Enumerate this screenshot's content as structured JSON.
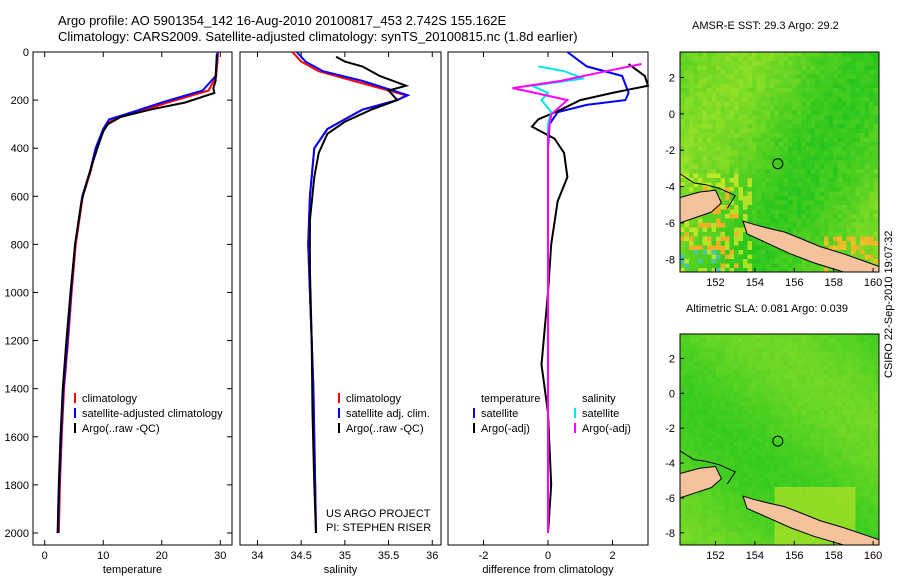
{
  "header": {
    "line1": "Argo profile: AO 5901354_142 16-Aug-2010 20100817_453 2.742S 155.162E",
    "line2": "Climatology: CARS2009. Satellite-adjusted climatology: synTS_20100815.nc (1.8d earlier)"
  },
  "footer_stamp": "CSIRO 22-Sep-2010 19:07:32",
  "colors": {
    "climatology": "#ff0000",
    "satellite": "#0000ff",
    "argo": "#000000",
    "sat_salinity": "#00e5ee",
    "argo_adj_salinity": "#ff00ff"
  },
  "chart_data": [
    {
      "type": "line",
      "xlabel": "temperature",
      "ylabel": "",
      "xlim": [
        -2,
        32
      ],
      "ylim": [
        2050,
        0
      ],
      "x_ticks": [
        0,
        10,
        20,
        30
      ],
      "y_ticks": [
        0,
        200,
        400,
        600,
        800,
        1000,
        1200,
        1400,
        1600,
        1800,
        2000
      ],
      "legend": {
        "position": "lower-right",
        "entries": [
          "climatology",
          "satellite-adjusted climatology",
          "Argo(..raw -QC)"
        ]
      },
      "series": [
        {
          "name": "climatology",
          "color": "#ff0000",
          "x": [
            29.6,
            29.5,
            29.3,
            28.0,
            21.0,
            16.0,
            11.5,
            10.2,
            8.8,
            7.8,
            6.5,
            5.3,
            4.6,
            4.0,
            3.3,
            2.9,
            2.6,
            2.4
          ],
          "y": [
            0,
            40,
            100,
            160,
            210,
            250,
            280,
            320,
            400,
            500,
            600,
            800,
            1000,
            1200,
            1400,
            1600,
            1800,
            2000
          ]
        },
        {
          "name": "satellite-adjusted climatology",
          "color": "#0000ff",
          "x": [
            29.5,
            29.4,
            29.2,
            27.0,
            20.0,
            15.0,
            11.0,
            10.0,
            8.7,
            7.7,
            6.4,
            5.2,
            4.5,
            3.9,
            3.2,
            2.8,
            2.5,
            2.3
          ],
          "y": [
            0,
            40,
            100,
            160,
            210,
            250,
            280,
            320,
            400,
            500,
            600,
            800,
            1000,
            1200,
            1400,
            1600,
            1800,
            2000
          ]
        },
        {
          "name": "Argo(..raw -QC)",
          "color": "#000000",
          "x": [
            29.4,
            29.3,
            29.2,
            28.8,
            29.0,
            24.0,
            18.0,
            13.0,
            10.8,
            10.0,
            9.0,
            8.2,
            7.2,
            6.3,
            5.2,
            4.4,
            3.7,
            3.1,
            2.7,
            2.4,
            2.2
          ],
          "y": [
            10,
            60,
            120,
            150,
            170,
            210,
            240,
            270,
            300,
            330,
            400,
            460,
            540,
            620,
            800,
            1000,
            1200,
            1400,
            1600,
            1800,
            2000
          ]
        }
      ]
    },
    {
      "type": "line",
      "xlabel": "salinity",
      "ylabel": "",
      "xlim": [
        33.8,
        36.1
      ],
      "ylim": [
        2050,
        0
      ],
      "x_ticks": [
        34,
        34.5,
        35,
        35.5,
        36
      ],
      "y_ticks": [],
      "legend": {
        "position": "lower-right",
        "entries": [
          "climatology",
          "satellite adj. clim.",
          "Argo(..raw -QC)"
        ]
      },
      "annotations": [
        "US ARGO PROJECT",
        "PI: STEPHEN RISER"
      ],
      "series": [
        {
          "name": "climatology",
          "color": "#ff0000",
          "x": [
            34.4,
            34.5,
            34.7,
            35.1,
            35.5,
            35.7,
            35.6,
            35.2,
            35.0,
            34.8,
            34.65,
            34.6,
            34.58,
            34.6,
            34.62,
            34.64,
            34.66,
            34.67
          ],
          "y": [
            0,
            40,
            80,
            120,
            160,
            180,
            200,
            240,
            280,
            320,
            400,
            600,
            800,
            1000,
            1200,
            1400,
            1800,
            2000
          ]
        },
        {
          "name": "satellite adj. clim.",
          "color": "#0000ff",
          "x": [
            34.45,
            34.55,
            34.75,
            35.2,
            35.55,
            35.72,
            35.6,
            35.2,
            35.0,
            34.8,
            34.65,
            34.6,
            34.58,
            34.6,
            34.62,
            34.64,
            34.66,
            34.67
          ],
          "y": [
            0,
            40,
            80,
            120,
            160,
            180,
            200,
            240,
            280,
            320,
            400,
            600,
            800,
            1000,
            1200,
            1400,
            1800,
            2000
          ]
        },
        {
          "name": "Argo(..raw -QC)",
          "color": "#000000",
          "x": [
            34.9,
            35.0,
            35.2,
            35.4,
            35.7,
            35.5,
            35.6,
            35.3,
            35.0,
            34.8,
            34.7,
            34.65,
            34.6,
            34.6,
            34.62,
            34.63,
            34.65,
            34.67
          ],
          "y": [
            20,
            40,
            60,
            100,
            140,
            160,
            200,
            240,
            290,
            340,
            420,
            520,
            700,
            900,
            1200,
            1500,
            1800,
            2000
          ]
        }
      ]
    },
    {
      "type": "line",
      "xlabel": "difference from climatology",
      "ylabel": "",
      "xlim": [
        -3.1,
        3.1
      ],
      "ylim": [
        2050,
        0
      ],
      "x_ticks": [
        -2,
        0,
        2
      ],
      "y_ticks": [],
      "legend": {
        "position": "lower-center",
        "columns": [
          [
            "temperature",
            "satellite",
            "Argo(-adj)"
          ],
          [
            "salinity",
            "satellite",
            "Argo(-adj)"
          ]
        ]
      },
      "series": [
        {
          "name": "temperature satellite",
          "color": "#0000ff",
          "x": [
            0.6,
            1.2,
            2.3,
            2.5,
            2.4,
            1.2,
            0.3,
            0.05,
            0.0,
            0.0,
            0.0,
            0.0
          ],
          "y": [
            0,
            60,
            100,
            170,
            200,
            220,
            250,
            300,
            400,
            800,
            1400,
            2000
          ]
        },
        {
          "name": "temperature Argo(-adj)",
          "color": "#000000",
          "x": [
            2.5,
            3.0,
            3.1,
            2.0,
            1.0,
            0.4,
            -0.3,
            -0.5,
            0.2,
            0.5,
            0.6,
            0.3,
            0.1,
            0.0,
            -0.2,
            0.0,
            0.1,
            0.0
          ],
          "y": [
            50,
            100,
            140,
            170,
            200,
            240,
            280,
            310,
            360,
            420,
            520,
            620,
            800,
            1000,
            1300,
            1500,
            1800,
            2000
          ]
        },
        {
          "name": "salinity satellite",
          "color": "#00e5ee",
          "x": [
            -0.3,
            0.5,
            1.1,
            -0.5,
            0.0,
            -0.2,
            0.1,
            0.0,
            0.0,
            0.0,
            0.0
          ],
          "y": [
            60,
            80,
            110,
            140,
            170,
            200,
            250,
            300,
            600,
            1200,
            2000
          ]
        },
        {
          "name": "salinity Argo(-adj)",
          "color": "#ff00ff",
          "x": [
            2.9,
            1.8,
            0.4,
            -1.1,
            -0.4,
            0.6,
            0.1,
            0.0,
            0.0,
            0.0
          ],
          "y": [
            50,
            80,
            120,
            150,
            170,
            200,
            260,
            350,
            800,
            2000
          ]
        }
      ]
    },
    {
      "type": "heatmap",
      "title": "AMSR-E SST: 29.3 Argo: 29.2",
      "x_ticks": [
        152,
        154,
        156,
        158,
        160
      ],
      "y_ticks": [
        2,
        0,
        -2,
        -4,
        -6,
        -8
      ],
      "xlim": [
        150.2,
        160.3
      ],
      "ylim": [
        -8.7,
        3.4
      ],
      "argo_location": [
        155.162,
        -2.742
      ]
    },
    {
      "type": "heatmap",
      "title": "Altimetric SLA: 0.081 Argo: 0.039",
      "x_ticks": [
        152,
        154,
        156,
        158,
        160
      ],
      "y_ticks": [
        2,
        0,
        -2,
        -4,
        -6,
        -8
      ],
      "xlim": [
        150.2,
        160.3
      ],
      "ylim": [
        -8.7,
        3.4
      ],
      "argo_location": [
        155.162,
        -2.742
      ]
    }
  ]
}
